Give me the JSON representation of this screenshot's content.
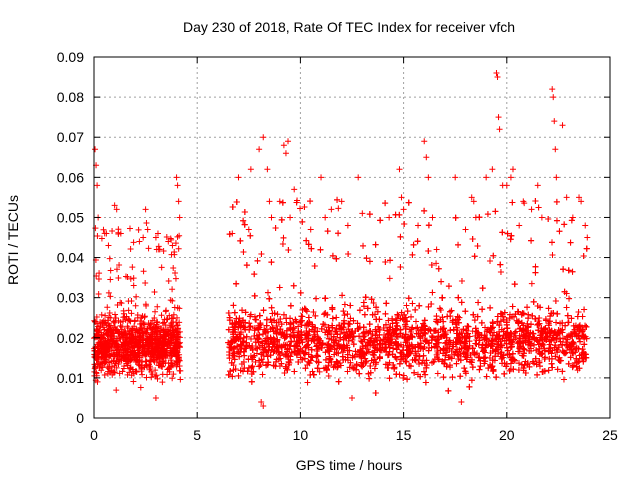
{
  "chart_data": {
    "type": "scatter",
    "title": "Day 230 of 2018, Rate Of TEC Index for receiver vfch",
    "xlabel": "GPS time / hours",
    "ylabel": "ROTI / TECUs",
    "xlim": [
      0,
      25
    ],
    "ylim": [
      0,
      0.09
    ],
    "xticks": [
      "0",
      "5",
      "10",
      "15",
      "20",
      "25"
    ],
    "yticks": [
      "0",
      "0.01",
      "0.02",
      "0.03",
      "0.04",
      "0.05",
      "0.06",
      "0.07",
      "0.08",
      "0.09"
    ],
    "grid": true,
    "marker": "+",
    "color": "#ff0000",
    "series": [
      {
        "segments": [
          {
            "x_start": 0.0,
            "x_end": 4.2,
            "baseline": 0.018,
            "spread": 0.007,
            "peaks": 0.045
          },
          {
            "x_start": 6.5,
            "x_end": 23.9,
            "baseline": 0.019,
            "spread": 0.008,
            "peaks": 0.05
          }
        ],
        "points": [
          [
            0.05,
            0.067
          ],
          [
            0.1,
            0.063
          ],
          [
            0.15,
            0.058
          ],
          [
            0.2,
            0.05
          ],
          [
            0.6,
            0.046
          ],
          [
            0.7,
            0.043
          ],
          [
            1.0,
            0.053
          ],
          [
            1.1,
            0.052
          ],
          [
            1.3,
            0.046
          ],
          [
            2.2,
            0.044
          ],
          [
            2.5,
            0.052
          ],
          [
            2.6,
            0.047
          ],
          [
            3.0,
            0.045
          ],
          [
            3.1,
            0.046
          ],
          [
            3.6,
            0.044
          ],
          [
            3.8,
            0.043
          ],
          [
            4.0,
            0.06
          ],
          [
            4.05,
            0.058
          ],
          [
            4.1,
            0.054
          ],
          [
            4.15,
            0.05
          ],
          [
            6.7,
            0.046
          ],
          [
            7.0,
            0.06
          ],
          [
            7.5,
            0.047
          ],
          [
            7.6,
            0.062
          ],
          [
            8.0,
            0.067
          ],
          [
            8.2,
            0.07
          ],
          [
            8.4,
            0.062
          ],
          [
            8.5,
            0.054
          ],
          [
            8.6,
            0.05
          ],
          [
            9.0,
            0.054
          ],
          [
            9.2,
            0.068
          ],
          [
            9.3,
            0.066
          ],
          [
            9.4,
            0.069
          ],
          [
            9.5,
            0.05
          ],
          [
            9.7,
            0.057
          ],
          [
            10.5,
            0.047
          ],
          [
            11.0,
            0.06
          ],
          [
            11.2,
            0.05
          ],
          [
            11.5,
            0.052
          ],
          [
            12.0,
            0.054
          ],
          [
            12.3,
            0.048
          ],
          [
            12.8,
            0.06
          ],
          [
            13.0,
            0.051
          ],
          [
            14.3,
            0.05
          ],
          [
            14.8,
            0.062
          ],
          [
            14.9,
            0.055
          ],
          [
            15.0,
            0.052
          ],
          [
            15.7,
            0.048
          ],
          [
            16.0,
            0.069
          ],
          [
            16.1,
            0.065
          ],
          [
            16.2,
            0.06
          ],
          [
            16.4,
            0.05
          ],
          [
            16.6,
            0.042
          ],
          [
            17.5,
            0.06
          ],
          [
            18.0,
            0.047
          ],
          [
            18.3,
            0.055
          ],
          [
            18.4,
            0.054
          ],
          [
            18.5,
            0.05
          ],
          [
            19.0,
            0.06
          ],
          [
            19.3,
            0.062
          ],
          [
            19.5,
            0.086
          ],
          [
            19.55,
            0.085
          ],
          [
            19.6,
            0.075
          ],
          [
            19.65,
            0.072
          ],
          [
            19.8,
            0.058
          ],
          [
            20.0,
            0.058
          ],
          [
            20.2,
            0.06
          ],
          [
            20.3,
            0.062
          ],
          [
            20.6,
            0.048
          ],
          [
            20.8,
            0.054
          ],
          [
            21.2,
            0.052
          ],
          [
            21.5,
            0.058
          ],
          [
            21.7,
            0.05
          ],
          [
            22.2,
            0.082
          ],
          [
            22.25,
            0.08
          ],
          [
            22.3,
            0.074
          ],
          [
            22.35,
            0.067
          ],
          [
            22.4,
            0.06
          ],
          [
            22.7,
            0.073
          ],
          [
            22.9,
            0.055
          ],
          [
            23.2,
            0.05
          ],
          [
            23.5,
            0.055
          ],
          [
            23.6,
            0.054
          ],
          [
            23.8,
            0.048
          ],
          [
            23.9,
            0.045
          ],
          [
            8.2,
            0.003
          ],
          [
            8.1,
            0.004
          ],
          [
            17.8,
            0.004
          ],
          [
            3.0,
            0.005
          ],
          [
            12.5,
            0.005
          ]
        ]
      }
    ]
  }
}
